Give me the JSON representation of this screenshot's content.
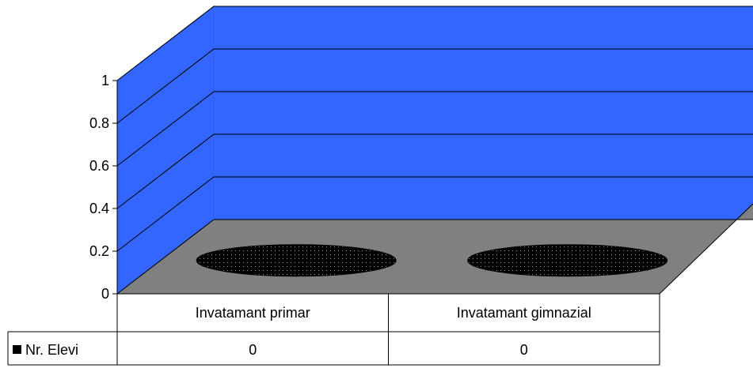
{
  "chart_data": {
    "type": "3d-column-cylinder",
    "title": "",
    "xlabel": "",
    "ylabel": "",
    "ylim": [
      0,
      1
    ],
    "yticks": [
      "0",
      "0.2",
      "0.4",
      "0.6",
      "0.8",
      "1"
    ],
    "categories": [
      "Invatamant primar",
      "Invatamant gimnazial"
    ],
    "series": [
      {
        "name": "Nr. Elevi",
        "values": [
          0,
          0
        ],
        "color": "#000000"
      }
    ],
    "data_table": true,
    "wall_color": "#3366FF",
    "floor_color": "#808080"
  }
}
